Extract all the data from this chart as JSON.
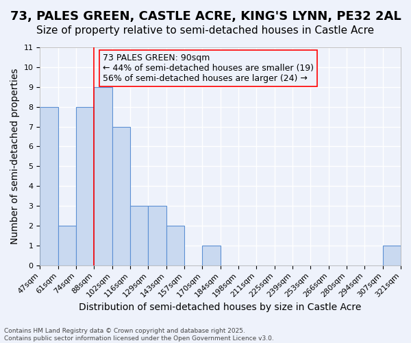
{
  "title": "73, PALES GREEN, CASTLE ACRE, KING'S LYNN, PE32 2AL",
  "subtitle": "Size of property relative to semi-detached houses in Castle Acre",
  "xlabel": "Distribution of semi-detached houses by size in Castle Acre",
  "ylabel": "Number of semi-detached properties",
  "footer_line1": "Contains HM Land Registry data © Crown copyright and database right 2025.",
  "footer_line2": "Contains public sector information licensed under the Open Government Licence v3.0.",
  "annotation_title": "73 PALES GREEN: 90sqm",
  "annotation_line2": "← 44% of semi-detached houses are smaller (19)",
  "annotation_line3": "56% of semi-detached houses are larger (24) →",
  "bins": [
    "47sqm",
    "61sqm",
    "74sqm",
    "88sqm",
    "102sqm",
    "116sqm",
    "129sqm",
    "143sqm",
    "157sqm",
    "170sqm",
    "184sqm",
    "198sqm",
    "211sqm",
    "225sqm",
    "239sqm",
    "253sqm",
    "266sqm",
    "280sqm",
    "294sqm",
    "307sqm",
    "321sqm"
  ],
  "values": [
    8,
    2,
    8,
    9,
    7,
    3,
    3,
    2,
    0,
    1,
    0,
    0,
    0,
    0,
    0,
    0,
    0,
    0,
    0,
    1
  ],
  "bar_color": "#c9d9f0",
  "bar_edge_color": "#5b8fd4",
  "red_line_x": 3,
  "ylim": [
    0,
    11
  ],
  "background_color": "#eef2fb",
  "grid_color": "#ffffff",
  "title_fontsize": 13,
  "subtitle_fontsize": 11,
  "axis_label_fontsize": 10,
  "tick_fontsize": 8,
  "annotation_fontsize": 9
}
